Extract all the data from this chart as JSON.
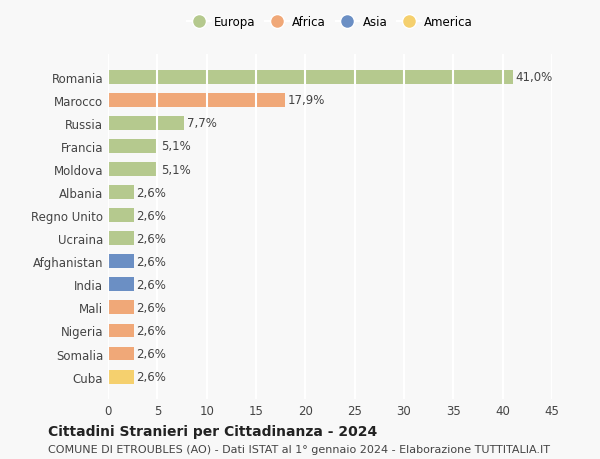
{
  "countries": [
    "Romania",
    "Marocco",
    "Russia",
    "Francia",
    "Moldova",
    "Albania",
    "Regno Unito",
    "Ucraina",
    "Afghanistan",
    "India",
    "Mali",
    "Nigeria",
    "Somalia",
    "Cuba"
  ],
  "values": [
    41.0,
    17.9,
    7.7,
    5.1,
    5.1,
    2.6,
    2.6,
    2.6,
    2.6,
    2.6,
    2.6,
    2.6,
    2.6,
    2.6
  ],
  "labels": [
    "41,0%",
    "17,9%",
    "7,7%",
    "5,1%",
    "5,1%",
    "2,6%",
    "2,6%",
    "2,6%",
    "2,6%",
    "2,6%",
    "2,6%",
    "2,6%",
    "2,6%",
    "2,6%"
  ],
  "continents": [
    "Europa",
    "Africa",
    "Europa",
    "Europa",
    "Europa",
    "Europa",
    "Europa",
    "Europa",
    "Asia",
    "Asia",
    "Africa",
    "Africa",
    "Africa",
    "America"
  ],
  "colors": {
    "Europa": "#b5c98e",
    "Africa": "#f0a878",
    "Asia": "#6b8fc4",
    "America": "#f5d06e"
  },
  "legend_order": [
    "Europa",
    "Africa",
    "Asia",
    "America"
  ],
  "xlim": [
    0,
    45
  ],
  "xticks": [
    0,
    5,
    10,
    15,
    20,
    25,
    30,
    35,
    40,
    45
  ],
  "title": "Cittadini Stranieri per Cittadinanza - 2024",
  "subtitle": "COMUNE DI ETROUBLES (AO) - Dati ISTAT al 1° gennaio 2024 - Elaborazione TUTTITALIA.IT",
  "background_color": "#f8f8f8",
  "grid_color": "#ffffff",
  "bar_height": 0.6,
  "label_fontsize": 8.5,
  "tick_fontsize": 8.5,
  "title_fontsize": 10,
  "subtitle_fontsize": 8
}
